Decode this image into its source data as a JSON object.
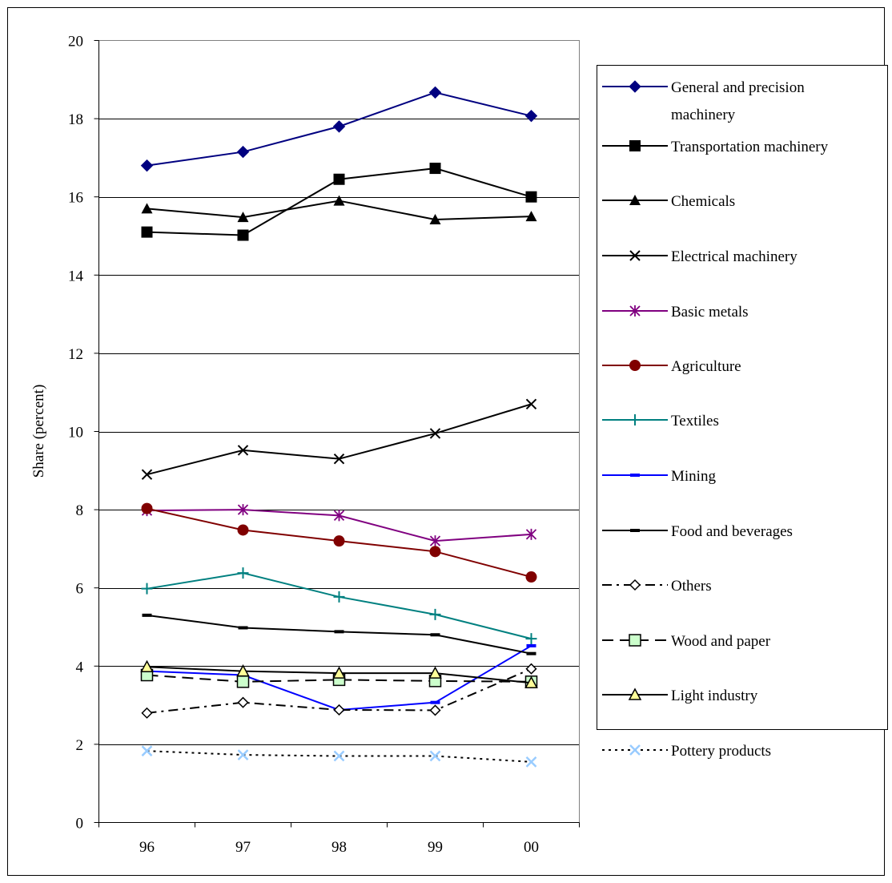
{
  "chart_data": {
    "type": "line",
    "title": "",
    "xlabel": "",
    "ylabel": "Share (percent)",
    "categories": [
      "96",
      "97",
      "98",
      "99",
      "00"
    ],
    "ylim": [
      0,
      20
    ],
    "yticks": [
      "0",
      "2",
      "4",
      "6",
      "8",
      "10",
      "12",
      "14",
      "16",
      "18",
      "20"
    ],
    "grid": true,
    "legend_position": "right",
    "series": [
      {
        "name": "General and precision machinery",
        "values": [
          16.8,
          17.15,
          17.8,
          18.67,
          18.07
        ],
        "color": "#000080",
        "marker": "diamond-filled",
        "dash": "solid"
      },
      {
        "name": "Transportation machinery",
        "values": [
          15.1,
          15.02,
          16.45,
          16.73,
          16.0
        ],
        "color": "#000000",
        "marker": "square-filled",
        "dash": "solid"
      },
      {
        "name": "Chemicals",
        "values": [
          15.7,
          15.48,
          15.9,
          15.42,
          15.5
        ],
        "color": "#000000",
        "marker": "triangle-filled",
        "dash": "solid"
      },
      {
        "name": "Electrical machinery",
        "values": [
          8.9,
          9.52,
          9.3,
          9.95,
          10.7
        ],
        "color": "#000000",
        "marker": "x",
        "dash": "solid"
      },
      {
        "name": "Basic metals",
        "values": [
          7.98,
          8.0,
          7.85,
          7.2,
          7.37
        ],
        "color": "#800080",
        "marker": "asterisk",
        "dash": "solid"
      },
      {
        "name": "Agriculture",
        "values": [
          8.03,
          7.48,
          7.2,
          6.93,
          6.28
        ],
        "color": "#800000",
        "marker": "circle-filled",
        "dash": "solid"
      },
      {
        "name": "Textiles",
        "values": [
          5.98,
          6.38,
          5.77,
          5.32,
          4.7
        ],
        "color": "#008080",
        "marker": "plus",
        "dash": "solid"
      },
      {
        "name": "Mining",
        "values": [
          3.87,
          3.77,
          2.88,
          3.07,
          4.52
        ],
        "color": "#0000FF",
        "marker": "dash",
        "dash": "solid"
      },
      {
        "name": "Food and beverages",
        "values": [
          5.3,
          4.98,
          4.88,
          4.8,
          4.32
        ],
        "color": "#000000",
        "marker": "dash",
        "dash": "solid"
      },
      {
        "name": "Others",
        "values": [
          2.8,
          3.07,
          2.88,
          2.87,
          3.93
        ],
        "color": "#000000",
        "marker": "diamond-open",
        "dash": "dashdot"
      },
      {
        "name": "Wood and paper",
        "values": [
          3.77,
          3.6,
          3.65,
          3.62,
          3.6
        ],
        "color": "#000000",
        "marker": "square-lightgreen",
        "dash": "dashed"
      },
      {
        "name": "Light industry",
        "values": [
          3.98,
          3.87,
          3.82,
          3.82,
          3.57
        ],
        "color": "#000000",
        "marker": "triangle-lightyellow",
        "dash": "solid"
      },
      {
        "name": "Pottery products",
        "values": [
          1.83,
          1.73,
          1.7,
          1.7,
          1.55
        ],
        "color": "#000000",
        "marker": "x-lightblue",
        "dash": "dotted"
      }
    ]
  }
}
